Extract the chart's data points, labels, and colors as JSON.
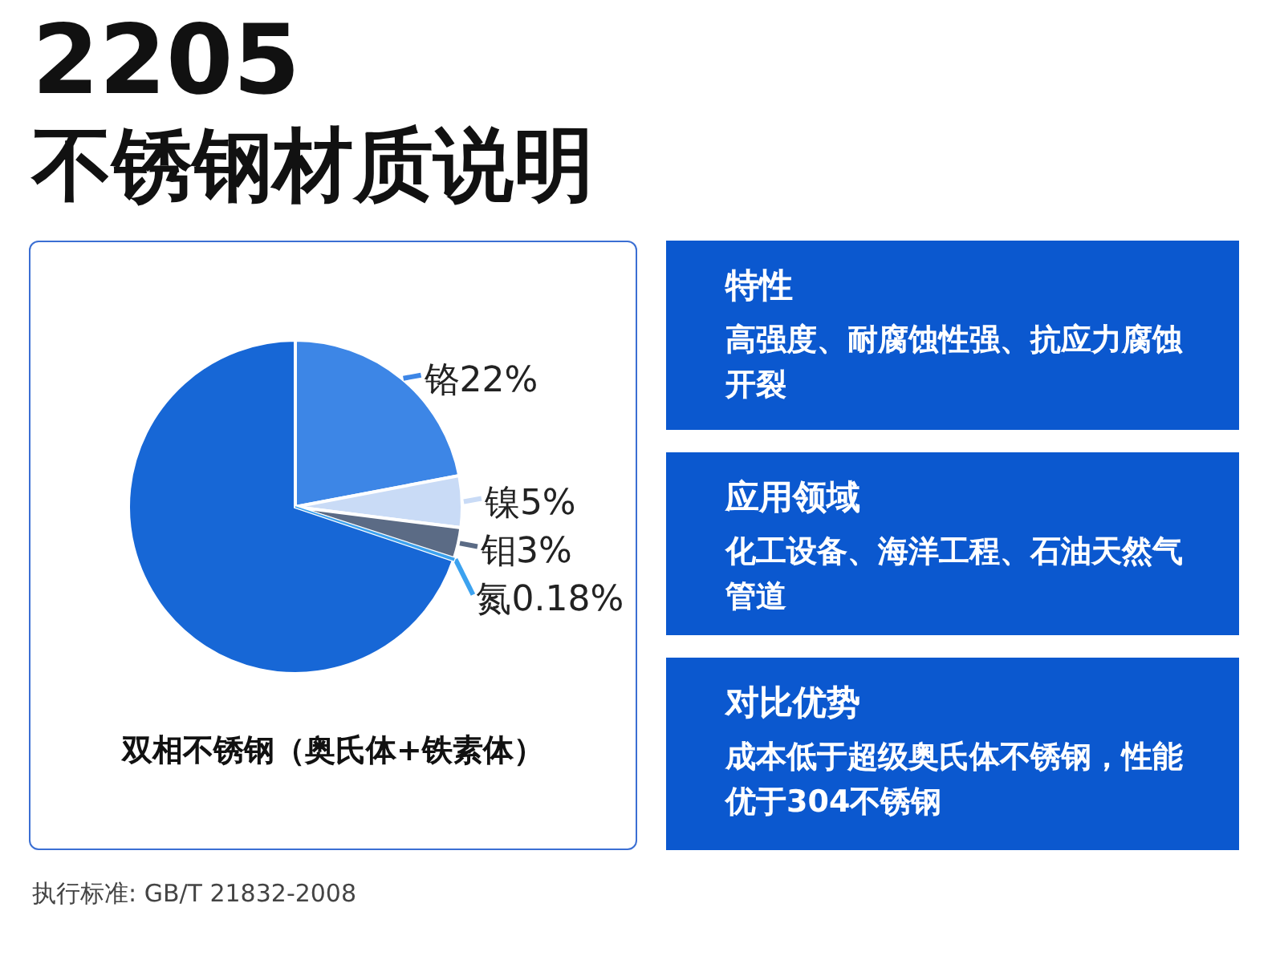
{
  "chart_data": [
    {
      "type": "pie",
      "title": "2205",
      "subtitle": "不锈钢材质说明",
      "xlabel": "双相不锈钢（奥氏体+铁素体）",
      "categories": [
        "铬",
        "镍",
        "钼",
        "氮",
        null
      ],
      "values": [
        22,
        5,
        3,
        0.18,
        69.82
      ],
      "value_labels": [
        "22%",
        "5%",
        "3%",
        "0.18%",
        null
      ],
      "colors": [
        "#3d86e6",
        "#c9dbf6",
        "#5b6b85",
        "#3ca2ef",
        "#1767d6"
      ],
      "annotations": [
        "执行标准: GB/T 21832-2008"
      ]
    },
    {
      "type": "other",
      "title": "特性",
      "annotations": [
        "高强度、耐腐蚀性强、抗应力腐蚀开裂"
      ]
    },
    {
      "type": "other",
      "title": "应用领域",
      "annotations": [
        "化工设备、海洋工程、石油天然气管道"
      ]
    },
    {
      "type": "other",
      "title": "对比优势",
      "annotations": [
        "成本低于超级奥氏体不锈钢，性能优于304不锈钢"
      ]
    }
  ]
}
